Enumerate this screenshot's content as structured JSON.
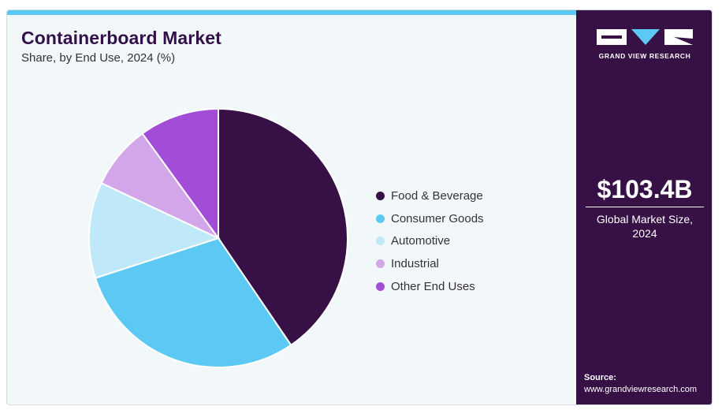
{
  "title": "Containerboard Market",
  "subtitle": "Share, by End Use, 2024 (%)",
  "chart_data": {
    "type": "pie",
    "title": "Containerboard Market",
    "subtitle": "Share, by End Use, 2024 (%)",
    "categories": [
      "Food & Beverage",
      "Consumer Goods",
      "Automotive",
      "Industrial",
      "Other End Uses"
    ],
    "values": [
      40.5,
      29.5,
      12,
      8,
      10
    ],
    "colors": [
      "#371146",
      "#5bc9f4",
      "#bfe9f9",
      "#d3a6ea",
      "#a24dd7"
    ],
    "legend": "right",
    "start_angle": "12 o'clock, clockwise"
  },
  "sidebar": {
    "brand": "GRAND VIEW RESEARCH",
    "logo_icon": "gvr-logo-icon",
    "market_size": "$103.4B",
    "market_size_caption": "Global Market Size, 2024",
    "source_label": "Source:",
    "source_url": "www.grandviewresearch.com"
  },
  "colors": {
    "accent": "#5bc9f4",
    "brand_purple": "#371146",
    "background": "#f2f7fa"
  }
}
